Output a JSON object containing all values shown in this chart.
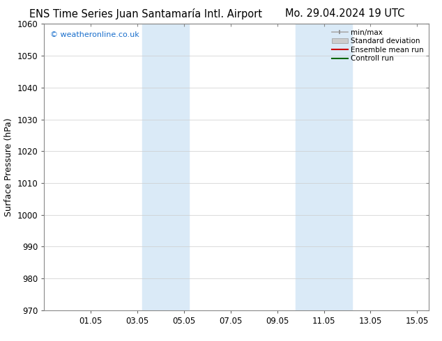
{
  "title_left": "ENS Time Series Juan Santamaría Intl. Airport",
  "title_right": "Mo. 29.04.2024 19 UTC",
  "ylabel": "Surface Pressure (hPa)",
  "ylim": [
    970,
    1060
  ],
  "yticks": [
    970,
    980,
    990,
    1000,
    1010,
    1020,
    1030,
    1040,
    1050,
    1060
  ],
  "xtick_labels": [
    "01.05",
    "03.05",
    "05.05",
    "07.05",
    "09.05",
    "11.05",
    "13.05",
    "15.05"
  ],
  "xtick_positions": [
    2,
    4,
    6,
    8,
    10,
    12,
    14,
    16
  ],
  "xlim": [
    0,
    16.5
  ],
  "shaded_bands": [
    {
      "x_start": 4.2,
      "x_end": 6.2,
      "color": "#daeaf7"
    },
    {
      "x_start": 10.8,
      "x_end": 13.2,
      "color": "#daeaf7"
    }
  ],
  "watermark_text": "© weatheronline.co.uk",
  "watermark_color": "#1a6fcc",
  "background_color": "#ffffff",
  "legend_items": [
    {
      "label": "min/max",
      "color": "#aaaaaa",
      "style": "minmax"
    },
    {
      "label": "Standard deviation",
      "color": "#cccccc",
      "style": "stddev"
    },
    {
      "label": "Ensemble mean run",
      "color": "#cc0000",
      "style": "line"
    },
    {
      "label": "Controll run",
      "color": "#006600",
      "style": "line"
    }
  ],
  "grid_color": "#cccccc",
  "title_fontsize": 10.5,
  "axis_fontsize": 9,
  "tick_fontsize": 8.5
}
